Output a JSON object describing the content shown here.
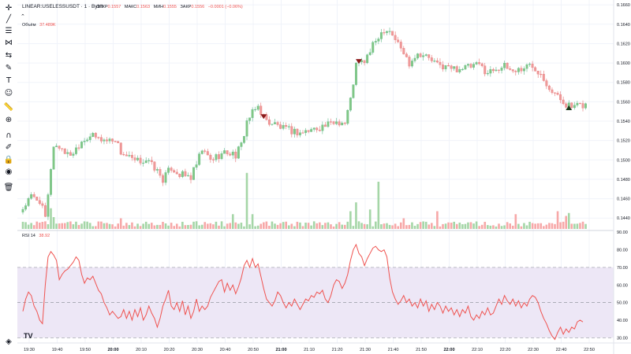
{
  "header": {
    "symbol": "LINEAR:USELESSUSDT · 1 · Bybit",
    "ohlc": [
      {
        "label": "ОТКР",
        "value": "0.1557"
      },
      {
        "label": "МАКС",
        "value": "0.1563"
      },
      {
        "label": "МИН",
        "value": "0.1555"
      },
      {
        "label": "ЗАКР",
        "value": "0.1556"
      }
    ],
    "change": "−0.0001 (−0.06%)",
    "volume_label": "Объём",
    "volume_value": "37.489K"
  },
  "rsi_legend": {
    "name": "RSI 14",
    "value": "38.92"
  },
  "toolbar": {
    "tools": [
      {
        "name": "crosshair-icon",
        "glyph": "✛"
      },
      {
        "name": "trend-line-icon",
        "glyph": "╱"
      },
      {
        "name": "fib-icon",
        "glyph": "☰"
      },
      {
        "name": "pattern-icon",
        "glyph": "⋈"
      },
      {
        "name": "projection-icon",
        "glyph": "⇆"
      },
      {
        "name": "brush-icon",
        "glyph": "✎"
      },
      {
        "name": "text-icon",
        "glyph": "T"
      },
      {
        "name": "emoji-icon",
        "glyph": "☺"
      },
      {
        "name": "ruler-icon",
        "glyph": "📏"
      },
      {
        "name": "zoom-in-icon",
        "glyph": "⊕"
      },
      {
        "name": "magnet-icon",
        "glyph": "∩"
      },
      {
        "name": "lock-drawings-icon",
        "glyph": "✐"
      },
      {
        "name": "lock-icon",
        "glyph": "🔒"
      },
      {
        "name": "eye-icon",
        "glyph": "◉"
      },
      {
        "name": "trash-icon",
        "glyph": "🗑"
      }
    ],
    "bottom": {
      "name": "layers-icon",
      "glyph": "◈"
    }
  },
  "tv_logo": "TV",
  "colors": {
    "up": "#26a69a",
    "down": "#ef5350",
    "up_light": "#a5d6a7",
    "down_light": "#f7a8a8",
    "rsi_line": "#ef5350",
    "rsi_band": "#ede7f6",
    "grid": "#f0f3fa",
    "text": "#131722",
    "axis_text": "#787b86"
  },
  "chart_data": {
    "type": "candlestick",
    "price_axis": {
      "ticks": [
        "0.1440",
        "0.1460",
        "0.1480",
        "0.1500",
        "0.1520",
        "0.1540",
        "0.1560",
        "0.1580",
        "0.1600",
        "0.1620",
        "0.1640",
        "0.1660"
      ],
      "range": [
        0.1428,
        0.1665
      ]
    },
    "rsi_axis": {
      "ticks": [
        "30.00",
        "40.00",
        "50.00",
        "60.00",
        "70.00",
        "80.00",
        "90.00"
      ],
      "range": [
        27,
        91
      ],
      "levels": [
        30,
        50,
        70
      ]
    },
    "time_axis": {
      "labels": [
        "19:30",
        "19:40",
        "19:50",
        "20:00",
        "20:10",
        "20:20",
        "20:30",
        "20:40",
        "20:50",
        "21:00",
        "21:10",
        "21:20",
        "21:30",
        "21:40",
        "21:50",
        "22:00",
        "22:10",
        "22:20",
        "22:30",
        "22:40",
        "22:50"
      ],
      "bold": [
        "20:00",
        "21:00",
        "22:00"
      ]
    },
    "markers": [
      {
        "type": "sell",
        "minute": 86,
        "price": 0.1543
      },
      {
        "type": "sell",
        "minute": 120,
        "price": 0.16
      },
      {
        "type": "buy",
        "minute": 195,
        "price": 0.1553
      }
    ],
    "anchors": [
      [
        0,
        0.145
      ],
      [
        3,
        0.1462
      ],
      [
        6,
        0.1458
      ],
      [
        8,
        0.144
      ],
      [
        9,
        0.1462
      ],
      [
        10,
        0.1492
      ],
      [
        11,
        0.1515
      ],
      [
        14,
        0.1512
      ],
      [
        16,
        0.1505
      ],
      [
        18,
        0.1508
      ],
      [
        21,
        0.152
      ],
      [
        24,
        0.1525
      ],
      [
        27,
        0.1522
      ],
      [
        30,
        0.152
      ],
      [
        33,
        0.1522
      ],
      [
        35,
        0.1508
      ],
      [
        38,
        0.1502
      ],
      [
        40,
        0.1498
      ],
      [
        44,
        0.15
      ],
      [
        47,
        0.1492
      ],
      [
        50,
        0.148
      ],
      [
        53,
        0.1492
      ],
      [
        56,
        0.1485
      ],
      [
        60,
        0.1482
      ],
      [
        62,
        0.1495
      ],
      [
        64,
        0.151
      ],
      [
        67,
        0.15
      ],
      [
        70,
        0.1505
      ],
      [
        73,
        0.1508
      ],
      [
        76,
        0.1505
      ],
      [
        78,
        0.1515
      ],
      [
        80,
        0.154
      ],
      [
        82,
        0.1548
      ],
      [
        84,
        0.1555
      ],
      [
        85,
        0.155
      ],
      [
        87,
        0.154
      ],
      [
        90,
        0.1537
      ],
      [
        93,
        0.1532
      ],
      [
        96,
        0.153
      ],
      [
        99,
        0.1528
      ],
      [
        102,
        0.153
      ],
      [
        106,
        0.1534
      ],
      [
        109,
        0.1536
      ],
      [
        112,
        0.154
      ],
      [
        115,
        0.1538
      ],
      [
        117,
        0.1562
      ],
      [
        119,
        0.1598
      ],
      [
        122,
        0.1602
      ],
      [
        124,
        0.1612
      ],
      [
        127,
        0.1628
      ],
      [
        129,
        0.1635
      ],
      [
        131,
        0.1634
      ],
      [
        134,
        0.162
      ],
      [
        136,
        0.161
      ],
      [
        138,
        0.16
      ],
      [
        140,
        0.1608
      ],
      [
        142,
        0.161
      ],
      [
        145,
        0.1605
      ],
      [
        148,
        0.1598
      ],
      [
        151,
        0.1596
      ],
      [
        154,
        0.1594
      ],
      [
        157,
        0.1595
      ],
      [
        160,
        0.1596
      ],
      [
        163,
        0.1598
      ],
      [
        166,
        0.159
      ],
      [
        169,
        0.1595
      ],
      [
        172,
        0.1596
      ],
      [
        175,
        0.1592
      ],
      [
        178,
        0.1594
      ],
      [
        181,
        0.1598
      ],
      [
        183,
        0.1595
      ],
      [
        185,
        0.159
      ],
      [
        188,
        0.1575
      ],
      [
        191,
        0.1565
      ],
      [
        194,
        0.1558
      ],
      [
        196,
        0.1554
      ],
      [
        198,
        0.1555
      ],
      [
        201,
        0.1557
      ]
    ],
    "volume_spikes": [
      [
        10,
        0.35
      ],
      [
        11,
        0.2
      ],
      [
        35,
        0.18
      ],
      [
        50,
        0.12
      ],
      [
        75,
        0.25
      ],
      [
        80,
        0.95
      ],
      [
        82,
        0.25
      ],
      [
        117,
        0.3
      ],
      [
        119,
        0.45
      ],
      [
        124,
        0.33
      ],
      [
        127,
        0.8
      ],
      [
        136,
        0.18
      ],
      [
        148,
        0.3
      ],
      [
        176,
        0.25
      ],
      [
        191,
        0.3
      ],
      [
        194,
        0.22
      ],
      [
        195,
        0.27
      ]
    ],
    "rsi_values": [
      45,
      52,
      56,
      54,
      48,
      45,
      40,
      38,
      60,
      76,
      79,
      77,
      74,
      63,
      66,
      68,
      69,
      71,
      73,
      76,
      74,
      66,
      61,
      64,
      63,
      65,
      61,
      57,
      55,
      50,
      47,
      43,
      45,
      43,
      41,
      42,
      46,
      41,
      45,
      40,
      46,
      42,
      47,
      40,
      43,
      48,
      44,
      41,
      36,
      41,
      48,
      52,
      57,
      48,
      46,
      50,
      45,
      51,
      43,
      48,
      41,
      45,
      52,
      45,
      48,
      46,
      48,
      53,
      56,
      59,
      62,
      63,
      56,
      61,
      57,
      60,
      55,
      59,
      64,
      71,
      74,
      70,
      75,
      70,
      72,
      65,
      58,
      52,
      50,
      48,
      51,
      56,
      54,
      50,
      47,
      50,
      48,
      52,
      49,
      46,
      49,
      52,
      51,
      54,
      53,
      56,
      55,
      57,
      52,
      50,
      54,
      60,
      63,
      62,
      58,
      61,
      66,
      74,
      80,
      83,
      78,
      76,
      71,
      75,
      78,
      81,
      82,
      80,
      79,
      80,
      76,
      64,
      56,
      52,
      49,
      51,
      54,
      50,
      52,
      48,
      50,
      47,
      52,
      48,
      51,
      45,
      49,
      46,
      50,
      48,
      44,
      48,
      45,
      47,
      43,
      46,
      42,
      46,
      44,
      48,
      42,
      40,
      43,
      41,
      45,
      43,
      47,
      43,
      44,
      48,
      52,
      49,
      54,
      51,
      49,
      52,
      48,
      51,
      47,
      50,
      48,
      52,
      54,
      53,
      50,
      45,
      41,
      38,
      34,
      31,
      29,
      33,
      36,
      32,
      35,
      33,
      36,
      35,
      39,
      40,
      39
    ]
  }
}
